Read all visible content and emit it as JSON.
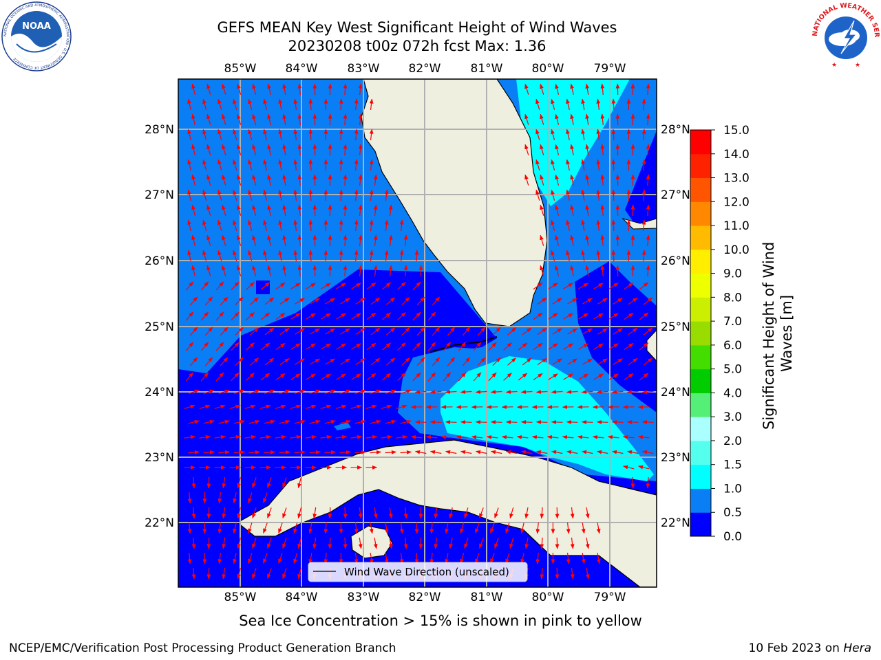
{
  "header": {
    "title_line1": "GEFS MEAN Key West Significant Height of Wind Waves",
    "title_line2": "20230208 t00z 072h fcst   Max: 1.36"
  },
  "logos": {
    "noaa_text": "NOAA",
    "noaa_ring_text": "NATIONAL OCEANIC AND ATMOSPHERIC ADMINISTRATION · U.S. DEPARTMENT OF COMMERCE",
    "nws_ring_text": "NATIONAL WEATHER SERVICE"
  },
  "map": {
    "lon_labels": [
      "85°W",
      "84°W",
      "83°W",
      "82°W",
      "81°W",
      "80°W",
      "79°W"
    ],
    "lat_labels": [
      "28°N",
      "27°N",
      "26°N",
      "25°N",
      "24°N",
      "23°N",
      "22°N"
    ],
    "legend_label": "Wind Wave Direction (unscaled)",
    "arrow_color": "#ff0000",
    "land_color": "#efefdf"
  },
  "colorbar": {
    "label_line1": "Significant Height of Wind",
    "label_line2": "Waves [m]",
    "ticks": [
      "0.0",
      "0.5",
      "1.0",
      "1.5",
      "2.0",
      "3.0",
      "4.0",
      "5.0",
      "6.0",
      "7.0",
      "8.0",
      "9.0",
      "10.0",
      "11.0",
      "12.0",
      "13.0",
      "14.0",
      "15.0"
    ],
    "colors": [
      "#0000ff",
      "#0a7ef5",
      "#00ffff",
      "#55ffee",
      "#aaffff",
      "#55ee77",
      "#00cc00",
      "#44dd00",
      "#99dd00",
      "#ccee00",
      "#eeff00",
      "#ffee00",
      "#ffbb00",
      "#ff8800",
      "#ff5500",
      "#ff2200",
      "#ff0000"
    ]
  },
  "footer": {
    "sea_ice_note": "Sea Ice Concentration > 15% is shown in pink to yellow",
    "credit": "NCEP/EMC/Verification Post Processing Product Generation Branch",
    "date_prefix": "10 Feb 2023 on ",
    "date_machine": "Hera"
  }
}
